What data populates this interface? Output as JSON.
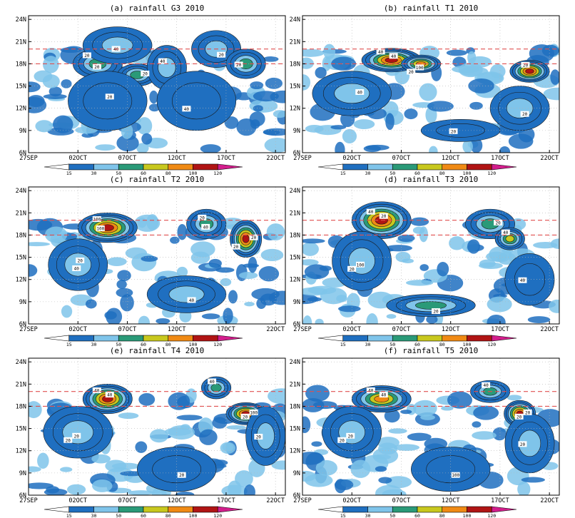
{
  "colors": {
    "levels": [
      "#ffffff",
      "#1f6fc0",
      "#7fc4ea",
      "#2a9a78",
      "#c8c81e",
      "#f08a14",
      "#b01414",
      "#d21e8c"
    ],
    "ref_line": "#e05050",
    "contour": "#1a1a1a",
    "grid": "#b4b4b4",
    "frame": "#000000"
  },
  "chart_data": [
    {
      "type": "heatmap",
      "title": "(a) rainfall  G3 2010",
      "x_ticks": [
        "27SEP",
        "02OCT",
        "07OCT",
        "12OCT",
        "17OCT",
        "22OCT"
      ],
      "y_ticks": [
        "6N",
        "9N",
        "12N",
        "15N",
        "18N",
        "21N",
        "24N"
      ],
      "xlim": [
        "27SEP",
        "23OCT"
      ],
      "ylim": [
        6,
        24.5
      ],
      "reference_lines_lat": [
        18,
        20
      ],
      "colorbar_levels": [
        "15",
        "30",
        "50",
        "60",
        "80",
        "100",
        "120"
      ],
      "contour_labels": [
        "20",
        "40",
        "20",
        "40",
        "20",
        "20",
        "20",
        "40",
        "20"
      ],
      "rain_cells": [
        {
          "date": "04OCT",
          "lat": 18.0,
          "rx": 2.5,
          "ry": 2.0,
          "peak": 55
        },
        {
          "date": "06OCT",
          "lat": 20.5,
          "rx": 3.5,
          "ry": 2.5,
          "peak": 40
        },
        {
          "date": "08OCT",
          "lat": 16.5,
          "rx": 2.0,
          "ry": 1.5,
          "peak": 50
        },
        {
          "date": "11OCT",
          "lat": 17.5,
          "rx": 2.0,
          "ry": 3.0,
          "peak": 35
        },
        {
          "date": "16OCT",
          "lat": 20.0,
          "rx": 2.5,
          "ry": 2.5,
          "peak": 35
        },
        {
          "date": "19OCT",
          "lat": 18.0,
          "rx": 2.0,
          "ry": 2.0,
          "peak": 55
        },
        {
          "date": "05OCT",
          "lat": 13.0,
          "rx": 4.0,
          "ry": 4.0,
          "peak": 25
        },
        {
          "date": "14OCT",
          "lat": 13.0,
          "rx": 4.0,
          "ry": 4.0,
          "peak": 25
        }
      ]
    },
    {
      "type": "heatmap",
      "title": "(b) rainfall  T1 2010",
      "x_ticks": [
        "27SEP",
        "02OCT",
        "07OCT",
        "12OCT",
        "17OCT",
        "22OCT"
      ],
      "y_ticks": [
        "6N",
        "9N",
        "12N",
        "15N",
        "18N",
        "21N",
        "24N"
      ],
      "xlim": [
        "27SEP",
        "23OCT"
      ],
      "ylim": [
        6,
        24.5
      ],
      "reference_lines_lat": [
        18,
        20
      ],
      "colorbar_levels": [
        "15",
        "30",
        "50",
        "60",
        "80",
        "100",
        "120"
      ],
      "contour_labels": [
        "40",
        "100",
        "40",
        "20",
        "20",
        "20",
        "40",
        "20"
      ],
      "rain_cells": [
        {
          "date": "06OCT",
          "lat": 18.5,
          "rx": 3.0,
          "ry": 1.6,
          "peak": 110
        },
        {
          "date": "09OCT",
          "lat": 18.0,
          "rx": 2.0,
          "ry": 1.2,
          "peak": 80
        },
        {
          "date": "02OCT",
          "lat": 14.0,
          "rx": 4.0,
          "ry": 3.0,
          "peak": 30
        },
        {
          "date": "20OCT",
          "lat": 17.0,
          "rx": 2.0,
          "ry": 1.5,
          "peak": 100
        },
        {
          "date": "19OCT",
          "lat": 12.0,
          "rx": 3.0,
          "ry": 3.0,
          "peak": 30
        },
        {
          "date": "13OCT",
          "lat": 9.0,
          "rx": 4.0,
          "ry": 1.5,
          "peak": 25
        }
      ]
    },
    {
      "type": "heatmap",
      "title": "(c) rainfall  T2 2010",
      "x_ticks": [
        "27SEP",
        "02OCT",
        "07OCT",
        "12OCT",
        "17OCT",
        "22OCT"
      ],
      "y_ticks": [
        "6N",
        "9N",
        "12N",
        "15N",
        "18N",
        "21N",
        "24N"
      ],
      "xlim": [
        "27SEP",
        "23OCT"
      ],
      "ylim": [
        6,
        24.5
      ],
      "reference_lines_lat": [
        18,
        20
      ],
      "colorbar_levels": [
        "15",
        "30",
        "50",
        "60",
        "80",
        "100",
        "120"
      ],
      "contour_labels": [
        "100",
        "40",
        "20",
        "20",
        "40",
        "100",
        "20",
        "20",
        "40"
      ],
      "rain_cells": [
        {
          "date": "05OCT",
          "lat": 19.0,
          "rx": 3.0,
          "ry": 2.0,
          "peak": 115
        },
        {
          "date": "02OCT",
          "lat": 14.0,
          "rx": 3.0,
          "ry": 3.5,
          "peak": 30
        },
        {
          "date": "19OCT",
          "lat": 17.5,
          "rx": 1.6,
          "ry": 2.5,
          "peak": 100
        },
        {
          "date": "15OCT",
          "lat": 19.5,
          "rx": 2.0,
          "ry": 2.0,
          "peak": 50
        },
        {
          "date": "13OCT",
          "lat": 10.0,
          "rx": 4.0,
          "ry": 2.5,
          "peak": 30
        }
      ]
    },
    {
      "type": "heatmap",
      "title": "(d) rainfall  T3 2010",
      "x_ticks": [
        "27SEP",
        "02OCT",
        "07OCT",
        "12OCT",
        "17OCT",
        "22OCT"
      ],
      "y_ticks": [
        "6N",
        "9N",
        "12N",
        "15N",
        "18N",
        "21N",
        "24N"
      ],
      "xlim": [
        "27SEP",
        "23OCT"
      ],
      "ylim": [
        6,
        24.5
      ],
      "reference_lines_lat": [
        18,
        20
      ],
      "colorbar_levels": [
        "15",
        "30",
        "50",
        "60",
        "80",
        "100",
        "120"
      ],
      "contour_labels": [
        "40",
        "100",
        "20",
        "40",
        "20",
        "40",
        "20",
        "20"
      ],
      "rain_cells": [
        {
          "date": "05OCT",
          "lat": 20.0,
          "rx": 3.0,
          "ry": 2.5,
          "peak": 105
        },
        {
          "date": "03OCT",
          "lat": 14.5,
          "rx": 3.0,
          "ry": 4.0,
          "peak": 30
        },
        {
          "date": "16OCT",
          "lat": 19.5,
          "rx": 2.5,
          "ry": 2.0,
          "peak": 55
        },
        {
          "date": "18OCT",
          "lat": 17.5,
          "rx": 1.5,
          "ry": 1.5,
          "peak": 60
        },
        {
          "date": "10OCT",
          "lat": 8.5,
          "rx": 4.5,
          "ry": 1.5,
          "peak": 55
        },
        {
          "date": "20OCT",
          "lat": 12.0,
          "rx": 2.5,
          "ry": 3.5,
          "peak": 25
        }
      ]
    },
    {
      "type": "heatmap",
      "title": "(e) rainfall  T4 2010",
      "x_ticks": [
        "27SEP",
        "02OCT",
        "07OCT",
        "12OCT",
        "17OCT",
        "22OCT"
      ],
      "y_ticks": [
        "6N",
        "9N",
        "12N",
        "15N",
        "18N",
        "21N",
        "24N"
      ],
      "xlim": [
        "27SEP",
        "23OCT"
      ],
      "ylim": [
        6,
        24.5
      ],
      "reference_lines_lat": [
        18,
        20
      ],
      "colorbar_levels": [
        "15",
        "30",
        "50",
        "60",
        "80",
        "100",
        "120"
      ],
      "contour_labels": [
        "40",
        "20",
        "100",
        "40",
        "20",
        "20",
        "40",
        "20",
        "20"
      ],
      "rain_cells": [
        {
          "date": "05OCT",
          "lat": 19.0,
          "rx": 2.5,
          "ry": 2.0,
          "peak": 105
        },
        {
          "date": "02OCT",
          "lat": 14.5,
          "rx": 3.5,
          "ry": 3.5,
          "peak": 30
        },
        {
          "date": "19OCT",
          "lat": 17.0,
          "rx": 2.0,
          "ry": 1.5,
          "peak": 105
        },
        {
          "date": "16OCT",
          "lat": 20.5,
          "rx": 1.5,
          "ry": 1.5,
          "peak": 55
        },
        {
          "date": "12OCT",
          "lat": 9.5,
          "rx": 4.0,
          "ry": 3.0,
          "peak": 25
        },
        {
          "date": "21OCT",
          "lat": 14.0,
          "rx": 2.0,
          "ry": 4.0,
          "peak": 30
        }
      ]
    },
    {
      "type": "heatmap",
      "title": "(f) rainfall  T5 2010",
      "x_ticks": [
        "27SEP",
        "02OCT",
        "07OCT",
        "12OCT",
        "17OCT",
        "22OCT"
      ],
      "y_ticks": [
        "6N",
        "9N",
        "12N",
        "15N",
        "18N",
        "21N",
        "24N"
      ],
      "xlim": [
        "27SEP",
        "23OCT"
      ],
      "ylim": [
        6,
        24.5
      ],
      "reference_lines_lat": [
        18,
        20
      ],
      "colorbar_levels": [
        "15",
        "30",
        "50",
        "60",
        "80",
        "100",
        "120"
      ],
      "contour_labels": [
        "40",
        "20",
        "20",
        "40",
        "100",
        "20",
        "40",
        "20",
        "20"
      ],
      "rain_cells": [
        {
          "date": "05OCT",
          "lat": 19.0,
          "rx": 3.0,
          "ry": 1.8,
          "peak": 85
        },
        {
          "date": "02OCT",
          "lat": 14.5,
          "rx": 3.0,
          "ry": 3.5,
          "peak": 30
        },
        {
          "date": "19OCT",
          "lat": 17.0,
          "rx": 1.6,
          "ry": 1.8,
          "peak": 105
        },
        {
          "date": "16OCT",
          "lat": 20.0,
          "rx": 2.0,
          "ry": 1.5,
          "peak": 55
        },
        {
          "date": "12OCT",
          "lat": 9.5,
          "rx": 4.0,
          "ry": 3.0,
          "peak": 25
        },
        {
          "date": "20OCT",
          "lat": 13.0,
          "rx": 2.5,
          "ry": 4.0,
          "peak": 30
        }
      ]
    }
  ]
}
